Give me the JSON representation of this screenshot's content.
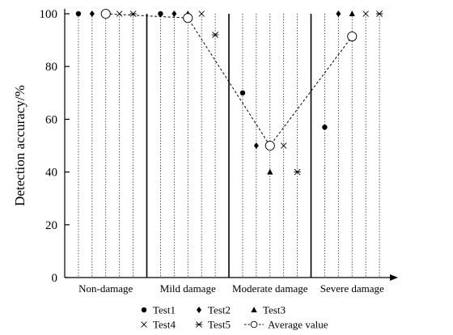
{
  "chart_data": {
    "type": "scatter",
    "title": "",
    "xlabel": "",
    "ylabel": "Detection accuracy/%",
    "ylim": [
      0,
      100
    ],
    "yticks": [
      0,
      20,
      40,
      60,
      80,
      100
    ],
    "categories": [
      "Non-damage",
      "Mild damage",
      "Moderate damage",
      "Severe damage"
    ],
    "positions_per_category": 5,
    "grid": "vertical dotted lines at each test position; solid separators between categories",
    "legend_placement": "bottom",
    "series": [
      {
        "name": "Test1",
        "marker": "circle-filled",
        "values": [
          100,
          100,
          70,
          57
        ]
      },
      {
        "name": "Test2",
        "marker": "diamond-filled",
        "values": [
          100,
          100,
          50,
          100
        ]
      },
      {
        "name": "Test3",
        "marker": "triangle-filled",
        "values": [
          100,
          100,
          40,
          100
        ]
      },
      {
        "name": "Test4",
        "marker": "x-cross",
        "values": [
          100,
          100,
          50,
          100
        ]
      },
      {
        "name": "Test5",
        "marker": "asterisk",
        "values": [
          100,
          92,
          40,
          100
        ]
      }
    ],
    "average": {
      "name": "Average value",
      "marker": "circle-open",
      "line": "dashed",
      "values": [
        100,
        98.4,
        50,
        91.4
      ]
    }
  }
}
